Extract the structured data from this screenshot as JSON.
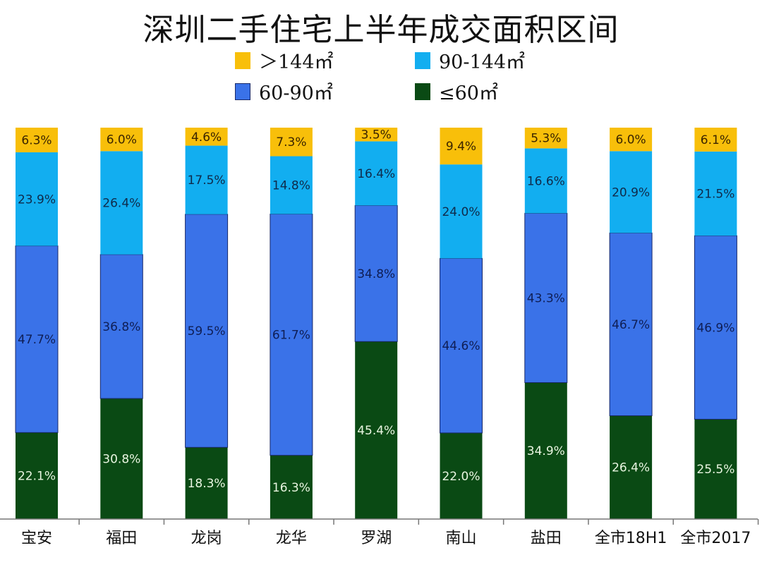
{
  "chart_data": {
    "type": "bar",
    "stacked": true,
    "percent_stacked": true,
    "title": "深圳二手住宅上半年成交面积区间",
    "xlabel": "",
    "ylabel": "",
    "ylim": [
      0,
      100
    ],
    "grid": false,
    "legend_position": "top",
    "categories": [
      "宝安",
      "福田",
      "龙岗",
      "龙华",
      "罗湖",
      "南山",
      "盐田",
      "全市18H1",
      "全市2017"
    ],
    "series": [
      {
        "name": "≤60㎡",
        "color": "#0a4a14",
        "label_color": "#e8f5e0",
        "values": [
          22.1,
          30.8,
          18.3,
          16.3,
          45.4,
          22.0,
          34.9,
          26.4,
          25.5
        ]
      },
      {
        "name": "60-90㎡",
        "color": "#3a72e8",
        "label_color": "#0f1e55",
        "values": [
          47.7,
          36.8,
          59.5,
          61.7,
          34.8,
          44.6,
          43.3,
          46.7,
          46.9
        ]
      },
      {
        "name": "90-144㎡",
        "color": "#12aef0",
        "label_color": "#0f2a4a",
        "values": [
          23.9,
          26.4,
          17.5,
          14.8,
          16.4,
          24.0,
          16.6,
          20.9,
          21.5
        ]
      },
      {
        "name": "＞144㎡",
        "color": "#f8bf0a",
        "label_color": "#3a2400",
        "values": [
          6.3,
          6.0,
          4.6,
          7.3,
          3.5,
          9.4,
          5.3,
          6.0,
          6.1
        ]
      }
    ],
    "legend": [
      {
        "label": "＞144㎡",
        "color": "#f8bf0a"
      },
      {
        "label": "90-144㎡",
        "color": "#12aef0"
      },
      {
        "label": "60-90㎡",
        "color": "#3a72e8"
      },
      {
        "label": "≤60㎡",
        "color": "#0a4a14"
      }
    ]
  }
}
